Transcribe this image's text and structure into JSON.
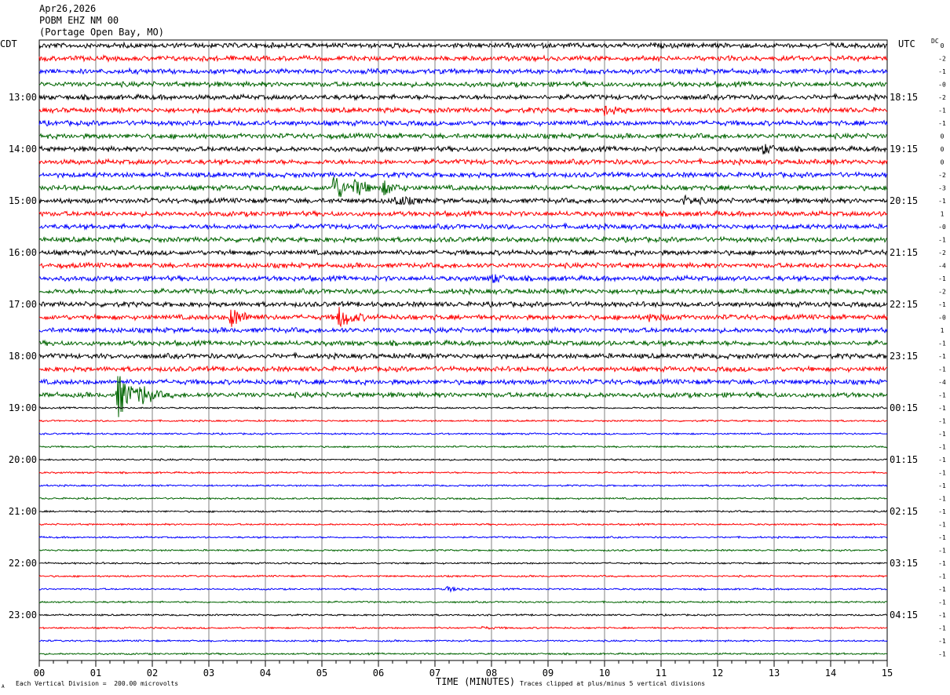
{
  "header": {
    "date": "Apr26,2026",
    "station": "POBM EHZ NM 00",
    "location": "(Portage Open Bay, MO)"
  },
  "left_tz": "CDT",
  "right_tz": "UTC",
  "dc_label": "DC",
  "footer": {
    "scale_note": "Each Vertical Division =  200.00 microvolts",
    "clip_note": "Traces clipped at plus/minus 5 vertical divisions",
    "corner_mark": "A"
  },
  "chart_data": {
    "type": "line",
    "title": "",
    "xlabel": "TIME (MINUTES)",
    "ylabel": "",
    "xlim": [
      0,
      15
    ],
    "x_ticks": [
      "00",
      "01",
      "02",
      "03",
      "04",
      "05",
      "06",
      "07",
      "08",
      "09",
      "10",
      "11",
      "12",
      "13",
      "14",
      "15"
    ],
    "left_time_labels": [
      "13:00",
      "14:00",
      "15:00",
      "16:00",
      "17:00",
      "18:00",
      "19:00",
      "20:00",
      "21:00",
      "22:00",
      "23:00"
    ],
    "right_time_labels": [
      "18:15",
      "19:15",
      "20:15",
      "21:15",
      "22:15",
      "23:15",
      "00:15",
      "01:15",
      "02:15",
      "03:15",
      "04:15"
    ],
    "trace_colors": [
      "#000000",
      "#ff0000",
      "#0000ff",
      "#006400"
    ],
    "dc_offsets": [
      "0",
      "-2",
      "-1",
      "-0",
      "-2",
      "-1",
      "-1",
      "0",
      "0",
      "0",
      "-2",
      "-3",
      "-1",
      "1",
      "-0",
      "-1",
      "-2",
      "-4",
      "-1",
      "-2",
      "-1",
      "-0",
      "1",
      "-1",
      "-1",
      "-1",
      "-4",
      "-1",
      "-1",
      "-1",
      "-1",
      "-1",
      "-1",
      "-1",
      "-1",
      "-1",
      "-1",
      "-1",
      "-1",
      "-1",
      "-1",
      "-1",
      "-1",
      "-1",
      "-1",
      "-1",
      "-1",
      "-1"
    ],
    "trace_count": 48,
    "events": [
      {
        "trace": 11,
        "minute": 5.2,
        "amplitude": 2.2
      },
      {
        "trace": 11,
        "minute": 5.6,
        "amplitude": 1.0
      },
      {
        "trace": 11,
        "minute": 6.1,
        "amplitude": 0.9
      },
      {
        "trace": 12,
        "minute": 6.3,
        "amplitude": 0.8
      },
      {
        "trace": 12,
        "minute": 11.4,
        "amplitude": 0.6
      },
      {
        "trace": 8,
        "minute": 12.8,
        "amplitude": 0.7
      },
      {
        "trace": 5,
        "minute": 10.0,
        "amplitude": 0.6
      },
      {
        "trace": 21,
        "minute": 3.4,
        "amplitude": 1.5
      },
      {
        "trace": 21,
        "minute": 5.3,
        "amplitude": 1.6
      },
      {
        "trace": 21,
        "minute": 10.8,
        "amplitude": 0.5
      },
      {
        "trace": 18,
        "minute": 8.0,
        "amplitude": 0.6
      },
      {
        "trace": 27,
        "minute": 1.4,
        "amplitude": 3.5
      },
      {
        "trace": 27,
        "minute": 1.8,
        "amplitude": 1.2
      },
      {
        "trace": 42,
        "minute": 7.2,
        "amplitude": 0.4
      },
      {
        "trace": 45,
        "minute": 7.8,
        "amplitude": 0.2
      }
    ]
  }
}
